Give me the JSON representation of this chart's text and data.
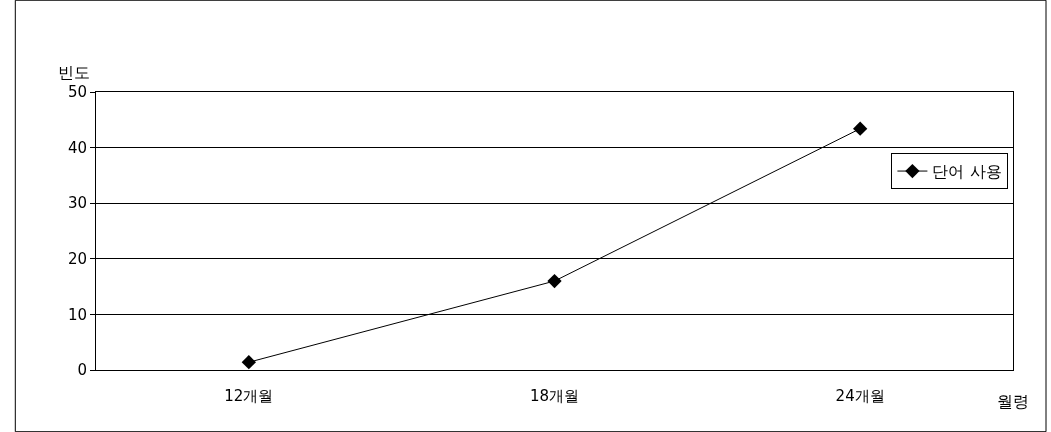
{
  "chart_data": {
    "type": "line",
    "ylabel": "빈도",
    "xlabel": "월령",
    "categories": [
      "12개월",
      "18개월",
      "24개월"
    ],
    "series": [
      {
        "name": "단어 사용",
        "color": "#000000",
        "values": [
          1.4,
          16.0,
          43.4
        ]
      }
    ],
    "ylim": [
      0,
      50
    ],
    "yticks": [
      0,
      10,
      20,
      30,
      40,
      50
    ],
    "grid": "y",
    "legend": "top right",
    "marker": "diamond",
    "line_style": "solid"
  }
}
